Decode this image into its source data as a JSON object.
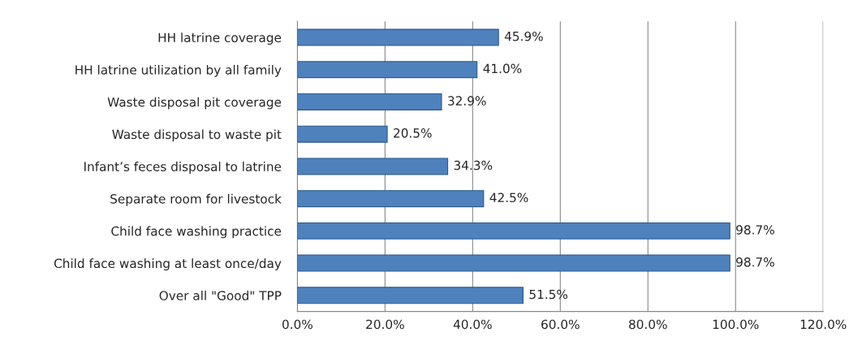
{
  "chart_data": {
    "type": "bar",
    "orientation": "horizontal",
    "categories": [
      "HH latrine coverage",
      "HH latrine utilization by all family",
      "Waste disposal pit coverage",
      "Waste disposal to waste pit",
      "Infant’s feces disposal to latrine",
      "Separate room for livestock",
      "Child face washing practice",
      "Child face washing at least once/day",
      "Over all \"Good\" TPP"
    ],
    "values": [
      45.9,
      41.0,
      32.9,
      20.5,
      34.3,
      42.5,
      98.7,
      98.7,
      51.5
    ],
    "value_labels": [
      "45.9%",
      "41.0%",
      "32.9%",
      "20.5%",
      "34.3%",
      "42.5%",
      "98.7%",
      "98.7%",
      "51.5%"
    ],
    "color": "#4f81bd",
    "xlim": [
      0,
      120
    ],
    "xticks": [
      {
        "value": 0,
        "label": "0.0%"
      },
      {
        "value": 20,
        "label": "20.0%"
      },
      {
        "value": 40,
        "label": "40.0%"
      },
      {
        "value": 60,
        "label": "60.0%"
      },
      {
        "value": 80,
        "label": "80.0%"
      },
      {
        "value": 100,
        "label": "100.0%"
      },
      {
        "value": 120,
        "label": "120.0%"
      }
    ],
    "grid": "x",
    "legend": false
  }
}
